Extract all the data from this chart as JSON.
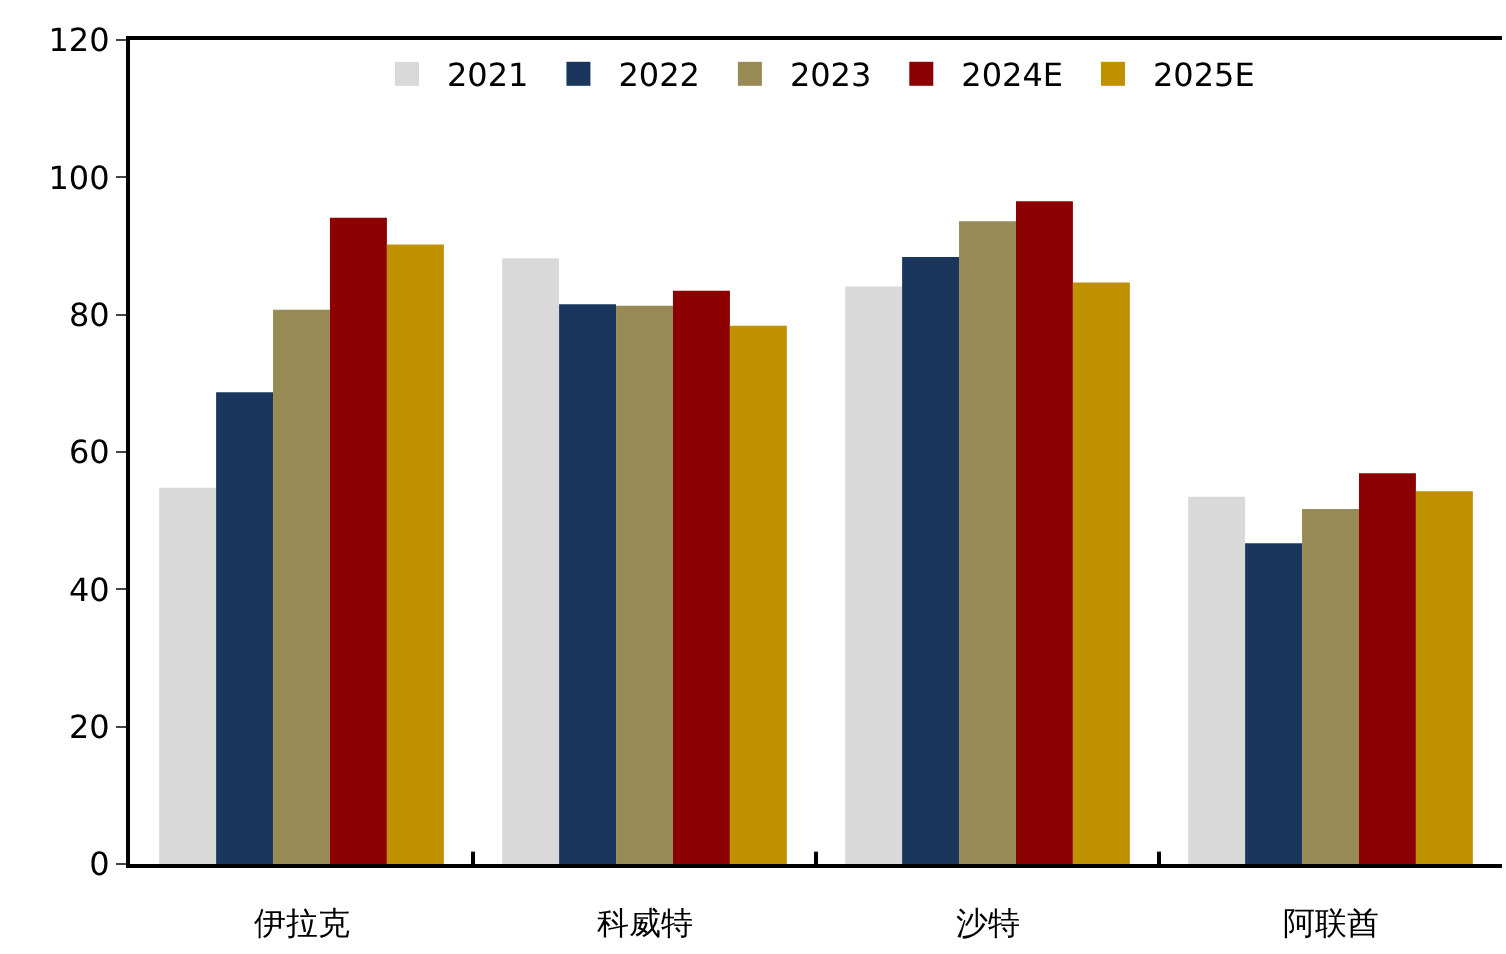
{
  "chart_data": {
    "type": "bar",
    "categories": [
      "伊拉克",
      "科威特",
      "沙特",
      "阿联酋"
    ],
    "series": [
      {
        "name": "2021",
        "color": "#d9d9d9",
        "values": [
          54.8,
          88.2,
          84.1,
          53.5
        ]
      },
      {
        "name": "2022",
        "color": "#1a365d",
        "values": [
          68.7,
          81.5,
          88.4,
          46.7
        ]
      },
      {
        "name": "2023",
        "color": "#978a54",
        "values": [
          80.7,
          81.3,
          93.6,
          51.7
        ]
      },
      {
        "name": "2024E",
        "color": "#8b0000",
        "values": [
          94.1,
          83.5,
          96.5,
          56.9
        ]
      },
      {
        "name": "2025E",
        "color": "#bf9000",
        "values": [
          90.2,
          78.4,
          84.7,
          54.3
        ]
      }
    ],
    "ylim": [
      0,
      120
    ],
    "yticks": [
      0,
      20,
      40,
      60,
      80,
      100,
      120
    ],
    "legend": "top"
  }
}
